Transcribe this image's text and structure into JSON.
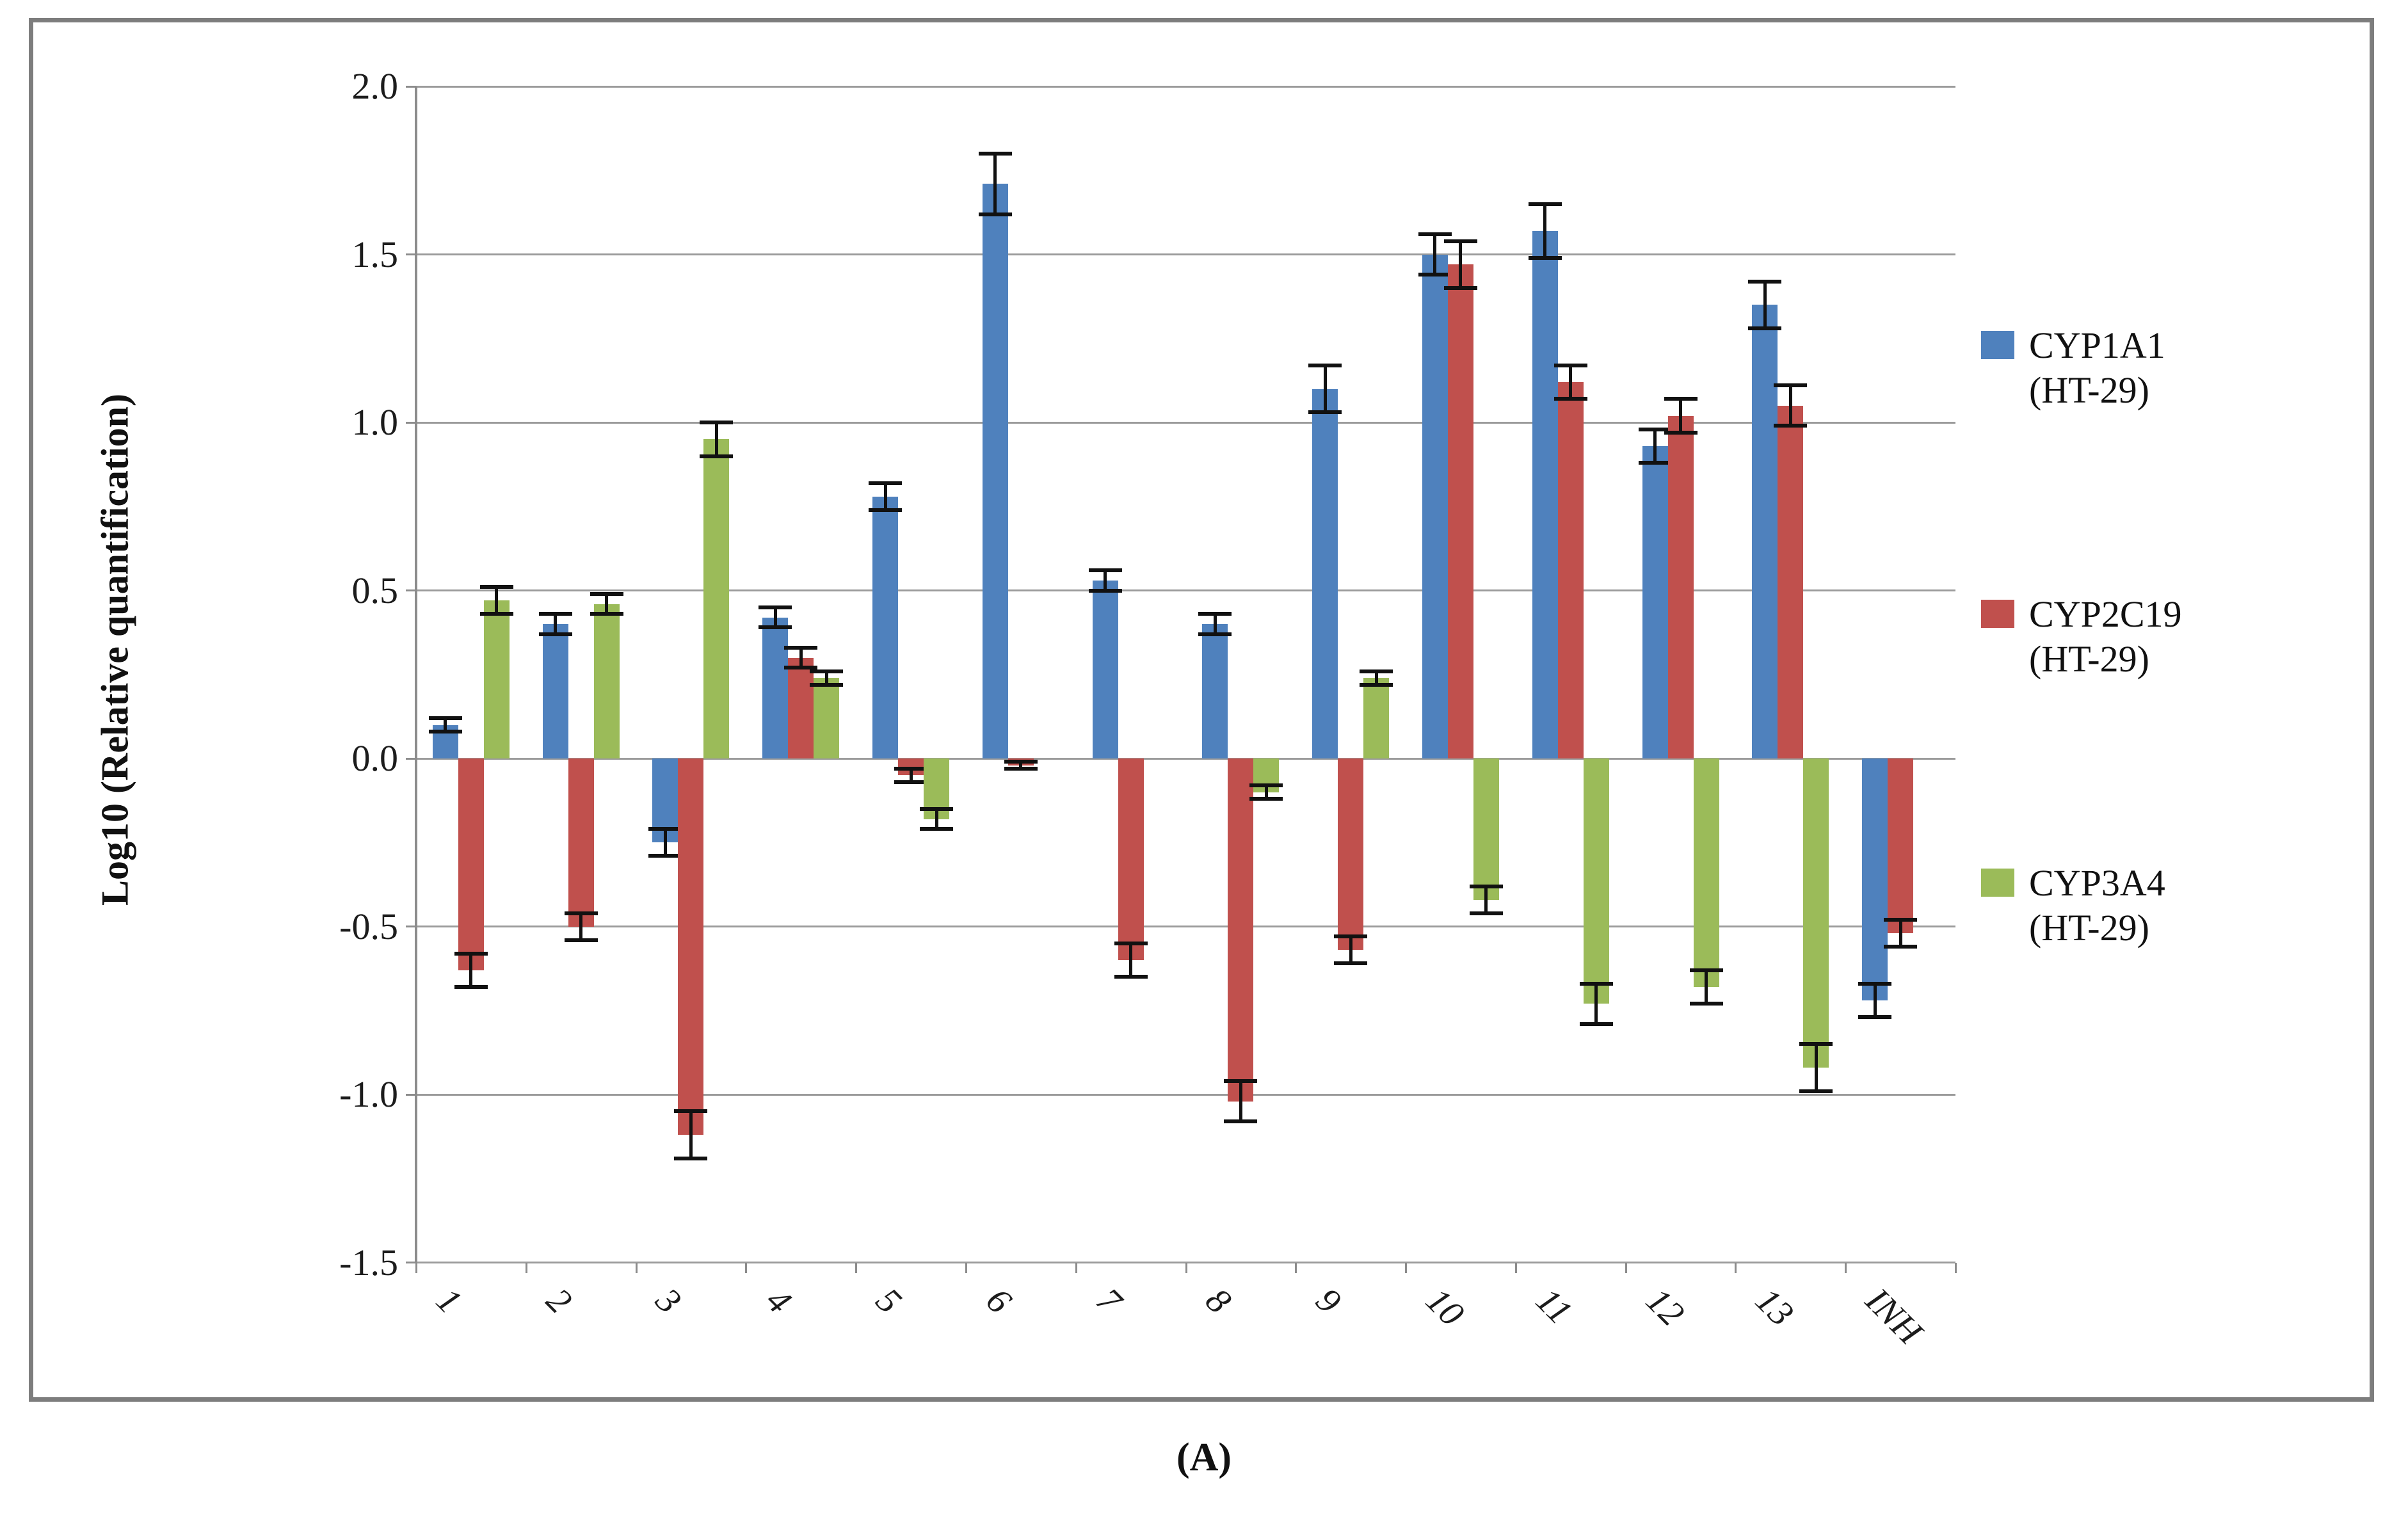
{
  "figure": {
    "caption": "(A)",
    "y_axis_title": "Log10 (Relative quantification)",
    "legend": [
      {
        "label": "CYP1A1\n(HT-29)",
        "color": "#4f81bd"
      },
      {
        "label": "CYP2C19\n(HT-29)",
        "color": "#c0504d"
      },
      {
        "label": "CYP3A4\n(HT-29)",
        "color": "#9bbb59"
      }
    ]
  },
  "chart_data": {
    "type": "bar",
    "title": "",
    "xlabel": "",
    "ylabel": "Log10 (Relative quantification)",
    "ylim": [
      -1.5,
      2.0
    ],
    "y_tick_step": 0.5,
    "y_tick_labels": [
      "2.0",
      "1.5",
      "1.0",
      "0.5",
      "0.0",
      "-0.5",
      "-1.0",
      "-1.5"
    ],
    "grid": true,
    "legend_position": "right",
    "error_bars": true,
    "categories": [
      "1",
      "2",
      "3",
      "4",
      "5",
      "6",
      "7",
      "8",
      "9",
      "10",
      "11",
      "12",
      "13",
      "INH"
    ],
    "series": [
      {
        "name": "CYP1A1 (HT-29)",
        "color": "#4f81bd",
        "values": [
          0.1,
          0.4,
          -0.25,
          0.42,
          0.78,
          1.71,
          0.53,
          0.4,
          1.1,
          1.5,
          1.57,
          0.93,
          1.35,
          -0.72
        ],
        "errors": [
          0.02,
          0.03,
          0.04,
          0.03,
          0.04,
          0.09,
          0.03,
          0.03,
          0.07,
          0.06,
          0.08,
          0.05,
          0.07,
          0.05
        ]
      },
      {
        "name": "CYP2C19 (HT-29)",
        "color": "#c0504d",
        "values": [
          -0.63,
          -0.5,
          -1.12,
          0.3,
          -0.05,
          -0.02,
          -0.6,
          -1.02,
          -0.57,
          1.47,
          1.12,
          1.02,
          1.05,
          -0.52
        ],
        "errors": [
          0.05,
          0.04,
          0.07,
          0.03,
          0.02,
          0.01,
          0.05,
          0.06,
          0.04,
          0.07,
          0.05,
          0.05,
          0.06,
          0.04
        ]
      },
      {
        "name": "CYP3A4 (HT-29)",
        "color": "#9bbb59",
        "values": [
          0.47,
          0.46,
          0.95,
          0.24,
          -0.18,
          0,
          0,
          -0.1,
          0.24,
          -0.42,
          -0.73,
          -0.68,
          -0.92,
          0
        ],
        "errors": [
          0.04,
          0.03,
          0.05,
          0.02,
          0.03,
          0,
          0,
          0.02,
          0.02,
          0.04,
          0.06,
          0.05,
          0.07,
          0
        ]
      }
    ]
  }
}
